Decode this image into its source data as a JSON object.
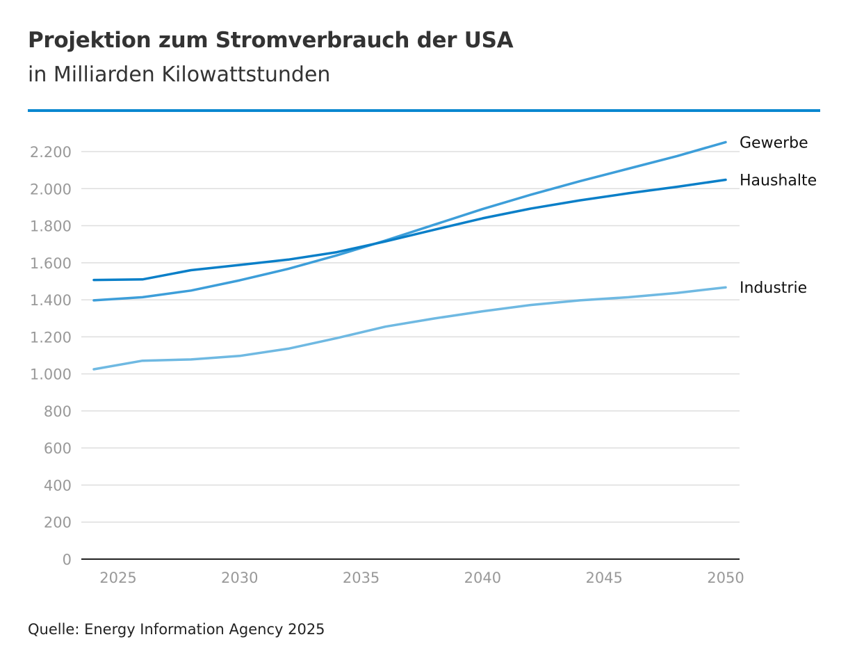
{
  "header": {
    "title": "Projektion zum Stromverbrauch der USA",
    "subtitle": "in Milliarden Kilowattstunden"
  },
  "footer": {
    "source": "Quelle: Energy Information Agency 2025"
  },
  "colors": {
    "rule": "#0a87d0",
    "grid": "#dedede",
    "axis": "#222222",
    "tick_label": "#999999",
    "series_label": "#111111"
  },
  "chart_data": {
    "type": "line",
    "title": "Projektion zum Stromverbrauch der USA",
    "subtitle": "in Milliarden Kilowattstunden",
    "xlabel": "",
    "ylabel": "",
    "xlim": [
      2024,
      2050
    ],
    "ylim": [
      0,
      2200
    ],
    "x_ticks": [
      2025,
      2030,
      2035,
      2040,
      2045,
      2050
    ],
    "x_tick_labels": [
      "2025",
      "2030",
      "2035",
      "2040",
      "2045",
      "2050"
    ],
    "y_ticks": [
      0,
      200,
      400,
      600,
      800,
      1000,
      1200,
      1400,
      1600,
      1800,
      2000,
      2200
    ],
    "y_tick_labels": [
      "0",
      "200",
      "400",
      "600",
      "800",
      "1.000",
      "1.200",
      "1.400",
      "1.600",
      "1.800",
      "2.000",
      "2.200"
    ],
    "grid": true,
    "legend": "direct labels at line ends (right)",
    "x": [
      2024,
      2026,
      2028,
      2030,
      2032,
      2034,
      2036,
      2038,
      2040,
      2042,
      2044,
      2046,
      2048,
      2050
    ],
    "series": [
      {
        "name": "Gewerbe",
        "color": "#3d9ed9",
        "values": [
          1397,
          1414,
          1450,
          1505,
          1567,
          1640,
          1720,
          1805,
          1890,
          1968,
          2040,
          2108,
          2176,
          2251
        ]
      },
      {
        "name": "Haushalte",
        "color": "#0a7fc8",
        "values": [
          1507,
          1510,
          1560,
          1588,
          1617,
          1657,
          1715,
          1778,
          1840,
          1893,
          1937,
          1975,
          2010,
          2048
        ]
      },
      {
        "name": "Industrie",
        "color": "#6fb9e2",
        "values": [
          1025,
          1071,
          1078,
          1097,
          1136,
          1193,
          1255,
          1299,
          1338,
          1372,
          1397,
          1414,
          1437,
          1467
        ]
      }
    ]
  }
}
